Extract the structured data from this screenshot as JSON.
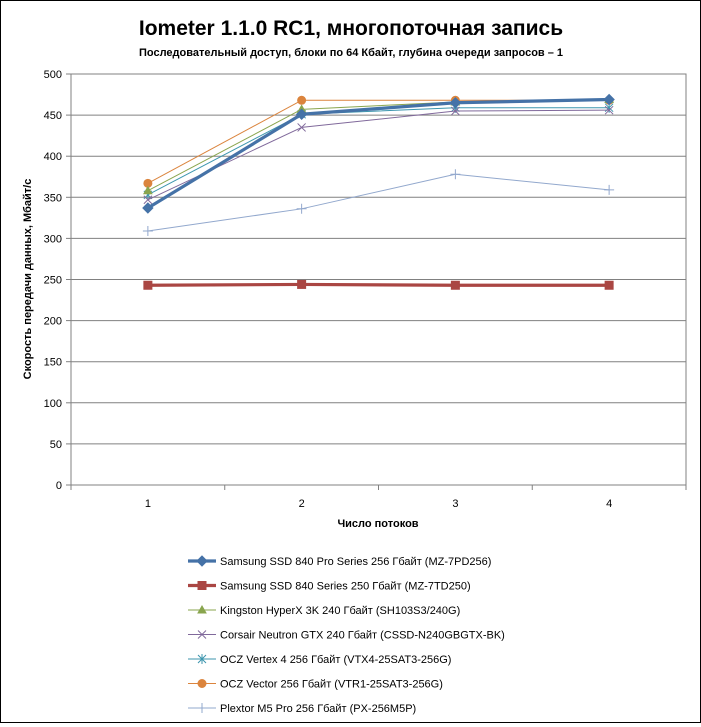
{
  "chart_data": {
    "type": "line",
    "title": "Iometer 1.1.0 RC1, многопоточная запись",
    "subtitle": "Последовательный  доступ, блоки  по 64 Кбайт,  глубина очереди запросов  – 1",
    "xlabel": "Число  потоков",
    "ylabel": "Скорость  передачи данных, Мбайт/с",
    "x": [
      1,
      2,
      3,
      4
    ],
    "ylim": [
      0,
      500
    ],
    "yticks": [
      0,
      50,
      100,
      150,
      200,
      250,
      300,
      350,
      400,
      450,
      500
    ],
    "grid": true,
    "legend_position": "bottom",
    "series": [
      {
        "name": "Samsung SSD 840 Pro Series 256 Гбайт (MZ-7PD256)",
        "values": [
          337,
          451,
          465,
          469
        ],
        "color": "#4572A7",
        "marker": "diamond",
        "width": 3.2
      },
      {
        "name": "Samsung SSD 840 Series 250 Гбайт (MZ-7TD250)",
        "values": [
          243,
          244,
          243,
          243
        ],
        "color": "#AA4643",
        "marker": "square",
        "width": 3.2
      },
      {
        "name": "Kingston HyperX  3K 240 Гбайт (SH103S3/240G)",
        "values": [
          358,
          457,
          466,
          469
        ],
        "color": "#89A54E",
        "marker": "triangle",
        "width": 1
      },
      {
        "name": "Corsair Neutron GTX 240 Гбайт (CSSD-N240GBGTX-BK)",
        "values": [
          347,
          435,
          455,
          456
        ],
        "color": "#80699B",
        "marker": "x",
        "width": 1
      },
      {
        "name": "OCZ Vertex  4 256 Гбайт (VTX4-25SAT3-256G)",
        "values": [
          353,
          451,
          459,
          459
        ],
        "color": "#3D96AE",
        "marker": "star",
        "width": 1
      },
      {
        "name": "OCZ Vector  256 Гбайт (VTR1-25SAT3-256G)",
        "values": [
          367,
          468,
          468,
          468
        ],
        "color": "#DB843D",
        "marker": "circle",
        "width": 1
      },
      {
        "name": "Plextor M5 Pro 256 Гбайт (PX-256M5P)",
        "values": [
          309,
          336,
          378,
          359
        ],
        "color": "#92A8CD",
        "marker": "plus",
        "width": 1
      }
    ]
  }
}
